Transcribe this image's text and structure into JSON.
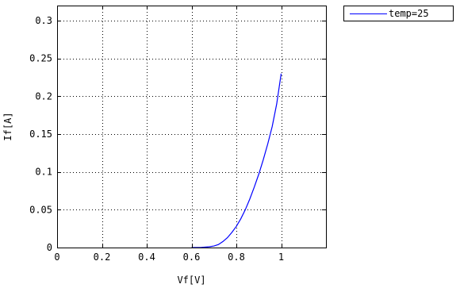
{
  "chart_data": {
    "type": "line",
    "title": "",
    "xlabel": "Vf[V]",
    "ylabel": "If[A]",
    "xlim": [
      0,
      1.2
    ],
    "ylim": [
      0,
      0.32
    ],
    "xticks": [
      0,
      0.2,
      0.4,
      0.6,
      0.8,
      1
    ],
    "xtick_labels": [
      "0",
      "0.2",
      "0.4",
      "0.6",
      "0.8",
      "1"
    ],
    "yticks": [
      0,
      0.05,
      0.1,
      0.15,
      0.2,
      0.25,
      0.3
    ],
    "ytick_labels": [
      "0",
      "0.05",
      "0.1",
      "0.15",
      "0.2",
      "0.25",
      "0.3"
    ],
    "grid": true,
    "legend_position": "outside-top-right",
    "series": [
      {
        "name": "temp=25",
        "color": "#0000ff",
        "x": [
          0.6,
          0.62,
          0.64,
          0.66,
          0.68,
          0.7,
          0.72,
          0.74,
          0.76,
          0.78,
          0.8,
          0.82,
          0.84,
          0.86,
          0.88,
          0.9,
          0.92,
          0.94,
          0.96,
          0.98,
          1.0
        ],
        "y": [
          0.0,
          0.0,
          0.0,
          0.0005,
          0.001,
          0.002,
          0.004,
          0.008,
          0.013,
          0.02,
          0.028,
          0.038,
          0.05,
          0.064,
          0.08,
          0.097,
          0.116,
          0.137,
          0.16,
          0.19,
          0.23
        ]
      }
    ]
  }
}
